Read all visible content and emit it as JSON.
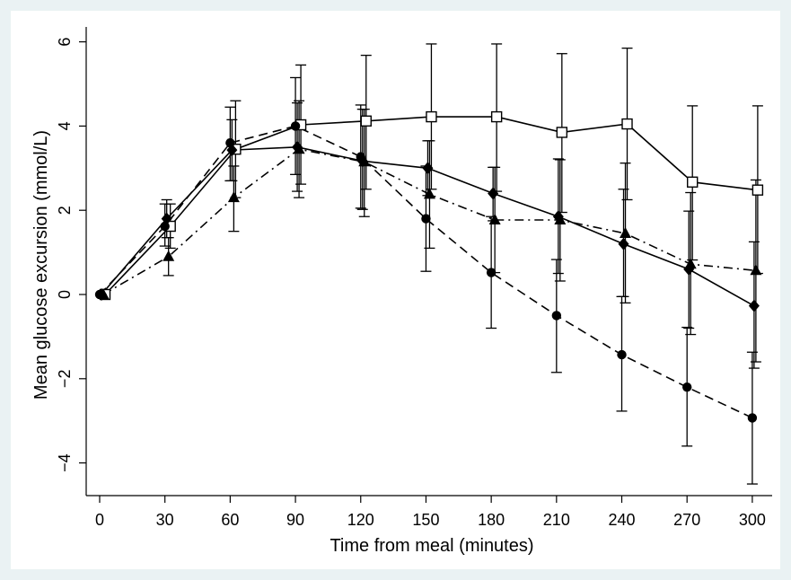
{
  "chart_data": {
    "type": "line",
    "title": "",
    "xlabel": "Time from meal (minutes)",
    "ylabel": "Mean glucose excursion (mmol/L)",
    "xlim": [
      -5,
      310
    ],
    "ylim": [
      -4.8,
      6.3
    ],
    "x_ticks": [
      "0",
      "30",
      "60",
      "90",
      "120",
      "150",
      "180",
      "210",
      "240",
      "270",
      "300"
    ],
    "y_ticks": [
      "−4",
      "−2",
      "0",
      "2",
      "4",
      "6"
    ],
    "grid": false,
    "legend": "none",
    "colors": {
      "outer_background": "#eaf2f3",
      "plot_background": "#ffffff",
      "series": "#000000"
    },
    "series": [
      {
        "marker": "hollow-square",
        "line_style": "solid",
        "x_offset": 6,
        "x": [
          0,
          30,
          60,
          90,
          120,
          150,
          180,
          210,
          240,
          270,
          300
        ],
        "y": [
          0,
          1.62,
          3.45,
          4.03,
          4.12,
          4.22,
          4.22,
          3.85,
          4.05,
          2.67,
          2.48
        ],
        "error_low": [
          0,
          1.1,
          2.3,
          2.62,
          2.5,
          2.5,
          2.45,
          1.95,
          2.25,
          0.82,
          0.5
        ],
        "error_high": [
          0,
          2.15,
          4.6,
          5.45,
          5.68,
          5.95,
          5.95,
          5.72,
          5.85,
          4.48,
          4.48
        ]
      },
      {
        "marker": "filled-circle",
        "line_style": "dashed",
        "x_offset": 0,
        "x": [
          0,
          30,
          60,
          90,
          120,
          150,
          180,
          210,
          240,
          270,
          300
        ],
        "y": [
          0,
          1.62,
          3.6,
          4.0,
          3.27,
          1.8,
          0.52,
          -0.5,
          -1.43,
          -2.2,
          -2.93
        ],
        "error_low": [
          0,
          1.15,
          2.7,
          2.85,
          2.05,
          0.55,
          -0.8,
          -1.85,
          -2.77,
          -3.6,
          -4.5
        ],
        "error_high": [
          0,
          2.15,
          4.45,
          5.15,
          4.5,
          3.05,
          1.85,
          0.83,
          -0.05,
          -0.78,
          -1.37
        ]
      },
      {
        "marker": "filled-diamond",
        "line_style": "solid",
        "x_offset": 2,
        "x": [
          0,
          30,
          60,
          90,
          120,
          150,
          180,
          210,
          240,
          270,
          300
        ],
        "y": [
          0,
          1.8,
          3.43,
          3.5,
          3.17,
          3.0,
          2.4,
          1.85,
          1.2,
          0.6,
          -0.27
        ],
        "error_low": [
          0,
          1.35,
          2.7,
          2.45,
          2.02,
          2.35,
          1.75,
          0.5,
          -0.05,
          -0.8,
          -1.75
        ],
        "error_high": [
          0,
          2.25,
          4.15,
          4.55,
          4.4,
          3.65,
          3.02,
          3.22,
          2.5,
          1.98,
          1.25
        ]
      },
      {
        "marker": "filled-triangle",
        "line_style": "dash-dot",
        "x_offset": 4,
        "x": [
          0,
          30,
          60,
          90,
          120,
          150,
          180,
          210,
          240,
          270,
          300
        ],
        "y": [
          0,
          0.9,
          2.3,
          3.45,
          3.15,
          2.38,
          1.77,
          1.77,
          1.45,
          0.72,
          0.57
        ],
        "error_low": [
          0,
          0.45,
          1.5,
          2.3,
          1.85,
          1.1,
          0.52,
          0.32,
          -0.2,
          -0.95,
          -1.6
        ],
        "error_high": [
          0,
          1.35,
          3.05,
          4.6,
          4.4,
          3.65,
          3.02,
          3.2,
          3.12,
          2.42,
          2.72
        ]
      }
    ]
  }
}
